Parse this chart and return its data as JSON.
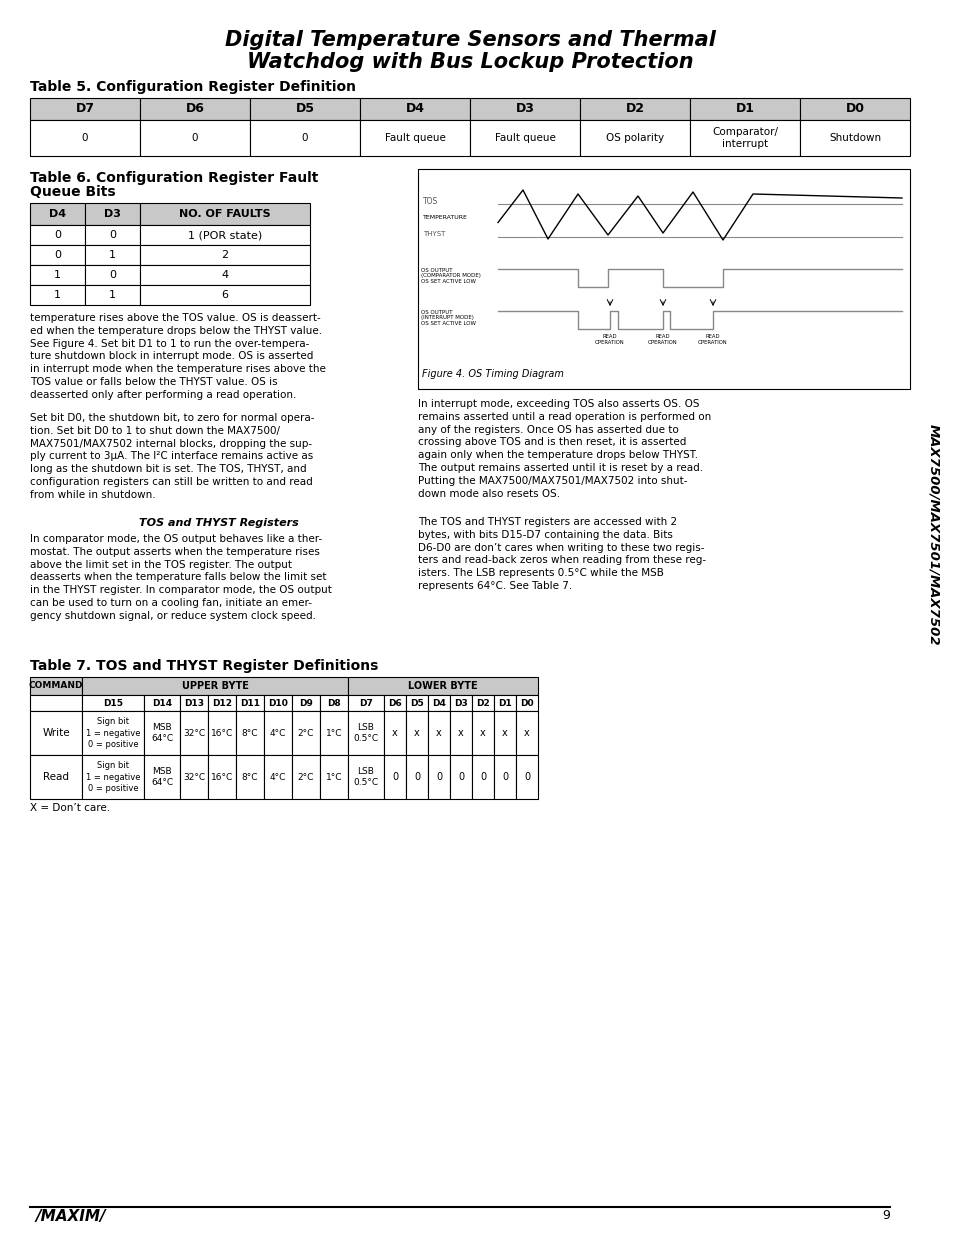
{
  "title_line1": "Digital Temperature Sensors and Thermal",
  "title_line2": "Watchdog with Bus Lockup Protection",
  "bg_color": "#ffffff",
  "table5_title": "Table 5. Configuration Register Definition",
  "table5_headers": [
    "D7",
    "D6",
    "D5",
    "D4",
    "D3",
    "D2",
    "D1",
    "D0"
  ],
  "table5_row": [
    "0",
    "0",
    "0",
    "Fault queue",
    "Fault queue",
    "OS polarity",
    "Comparator/\ninterrupt",
    "Shutdown"
  ],
  "table6_title_line1": "Table 6. Configuration Register Fault",
  "table6_title_line2": "Queue Bits",
  "table6_headers": [
    "D4",
    "D3",
    "NO. OF FAULTS"
  ],
  "table6_rows": [
    [
      "0",
      "0",
      "1 (POR state)"
    ],
    [
      "0",
      "1",
      "2"
    ],
    [
      "1",
      "0",
      "4"
    ],
    [
      "1",
      "1",
      "6"
    ]
  ],
  "fig4_caption": "Figure 4. OS Timing Diagram",
  "para_left1": "temperature rises above the TOS value. OS is deassert-\ned when the temperature drops below the THYST value.\nSee Figure 4. Set bit D1 to 1 to run the over-tempera-\nture shutdown block in interrupt mode. OS is asserted\nin interrupt mode when the temperature rises above the\nTOS value or falls below the THYST value. OS is\ndeasserted only after performing a read operation.",
  "para_left2": "Set bit D0, the shutdown bit, to zero for normal opera-\ntion. Set bit D0 to 1 to shut down the MAX7500/\nMAX7501/MAX7502 internal blocks, dropping the sup-\nply current to 3μA. The I²C interface remains active as\nlong as the shutdown bit is set. The TOS, THYST, and\nconfiguration registers can still be written to and read\nfrom while in shutdown.",
  "para_center_heading": "TOS and THYST Registers",
  "para_left3": "In comparator mode, the OS output behaves like a ther-\nmostat. The output asserts when the temperature rises\nabove the limit set in the TOS register. The output\ndeasserts when the temperature falls below the limit set\nin the THYST register. In comparator mode, the OS output\ncan be used to turn on a cooling fan, initiate an emer-\ngency shutdown signal, or reduce system clock speed.",
  "para_right1": "In interrupt mode, exceeding TOS also asserts OS. OS\nremains asserted until a read operation is performed on\nany of the registers. Once OS has asserted due to\ncrossing above TOS and is then reset, it is asserted\nagain only when the temperature drops below THYST.\nThe output remains asserted until it is reset by a read.\nPutting the MAX7500/MAX7501/MAX7502 into shut-\ndown mode also resets OS.",
  "para_right2": "The TOS and THYST registers are accessed with 2\nbytes, with bits D15-D7 containing the data. Bits\nD6-D0 are don’t cares when writing to these two regis-\nters and read-back zeros when reading from these reg-\nisters. The LSB represents 0.5°C while the MSB\nrepresents 64°C. See Table 7.",
  "table7_title": "Table 7. TOS and THYST Register Definitions",
  "table7_cmd_header": "COMMAND",
  "table7_upper_header": "UPPER BYTE",
  "table7_lower_header": "LOWER BYTE",
  "table7_upper_sub": [
    "D15",
    "D14",
    "D13",
    "D12",
    "D11",
    "D10",
    "D9",
    "D8"
  ],
  "table7_lower_sub": [
    "D7",
    "D6",
    "D5",
    "D4",
    "D3",
    "D2",
    "D1",
    "D0"
  ],
  "table7_write_cmd": "Write",
  "table7_read_cmd": "Read",
  "table7_d15": "Sign bit\n1 = negative\n0 = positive",
  "table7_upper_vals": [
    "MSB\n64°C",
    "32°C",
    "16°C",
    "8°C",
    "4°C",
    "2°C",
    "1°C"
  ],
  "table7_d7": "LSB\n0.5°C",
  "table7_write_lower": [
    "x",
    "x",
    "x",
    "x",
    "x",
    "x",
    "x"
  ],
  "table7_read_lower": [
    "0",
    "0",
    "0",
    "0",
    "0",
    "0",
    "0"
  ],
  "bottom_note": "X = Don’t care.",
  "sidebar": "MAX7500/MAX7501/MAX7502",
  "page_num": "9",
  "maxim_logo": "/MAXIM/"
}
